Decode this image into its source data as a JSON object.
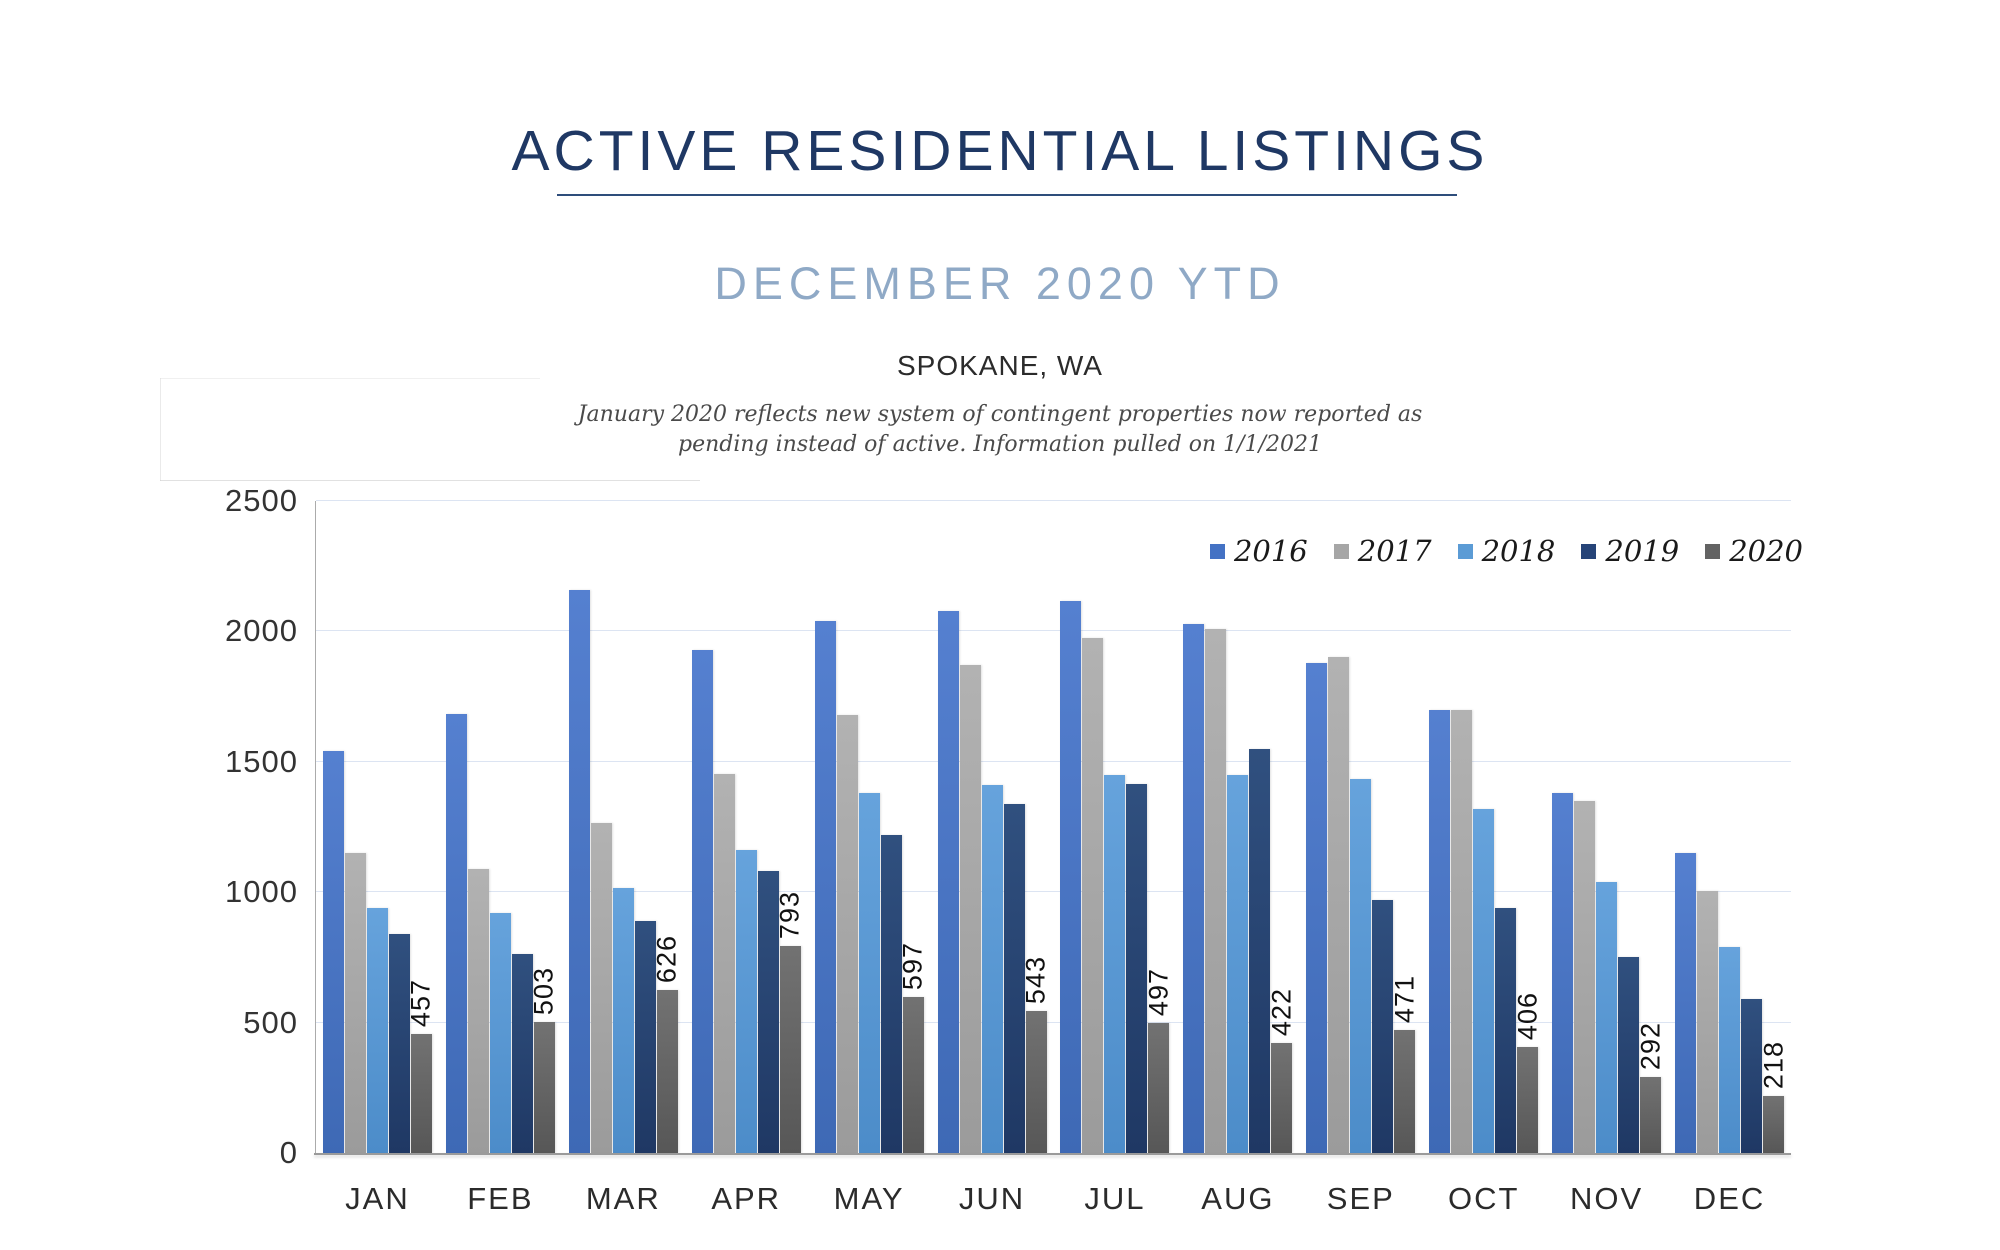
{
  "page": {
    "title": "ACTIVE RESIDENTIAL LISTINGS",
    "subtitle": "DECEMBER 2020 YTD",
    "location": "SPOKANE, WA",
    "note_line1": "January 2020 reflects new system of contingent properties now reported as",
    "note_line2": "pending instead of active.  Information pulled on 1/1/2021"
  },
  "colors": {
    "title": "#1F3864",
    "subtitle": "#8FA9C6",
    "gridline": "#DCE4F2",
    "axis": "#9A9A9A"
  },
  "chart_data": {
    "type": "bar",
    "title": "Active Residential Listings — December 2020 YTD, Spokane, WA",
    "categories": [
      "JAN",
      "FEB",
      "MAR",
      "APR",
      "MAY",
      "JUN",
      "JUL",
      "AUG",
      "SEP",
      "OCT",
      "NOV",
      "DEC"
    ],
    "series": [
      {
        "name": "2016",
        "color": "#4472C4",
        "values": [
          1540,
          1685,
          2160,
          1930,
          2040,
          2080,
          2115,
          2030,
          1880,
          1700,
          1380,
          1150
        ]
      },
      {
        "name": "2017",
        "color": "#A6A6A6",
        "values": [
          1150,
          1090,
          1265,
          1455,
          1680,
          1870,
          1975,
          2010,
          1900,
          1700,
          1350,
          1005
        ]
      },
      {
        "name": "2018",
        "color": "#5B9BD5",
        "values": [
          940,
          920,
          1015,
          1160,
          1380,
          1410,
          1450,
          1450,
          1435,
          1320,
          1040,
          790
        ]
      },
      {
        "name": "2019",
        "color": "#264478",
        "values": [
          840,
          765,
          890,
          1080,
          1220,
          1340,
          1415,
          1550,
          970,
          940,
          750,
          590
        ]
      },
      {
        "name": "2020",
        "color": "#636363",
        "values": [
          457,
          503,
          626,
          793,
          597,
          543,
          497,
          422,
          471,
          406,
          292,
          218
        ],
        "data_labels": true
      }
    ],
    "ylim": [
      0,
      2500
    ],
    "yticks": [
      0,
      500,
      1000,
      1500,
      2000,
      2500
    ],
    "grid": "horizontal",
    "legend_position": "top-right",
    "data_label_series": "2020",
    "data_label_orientation": "rotated-90"
  }
}
